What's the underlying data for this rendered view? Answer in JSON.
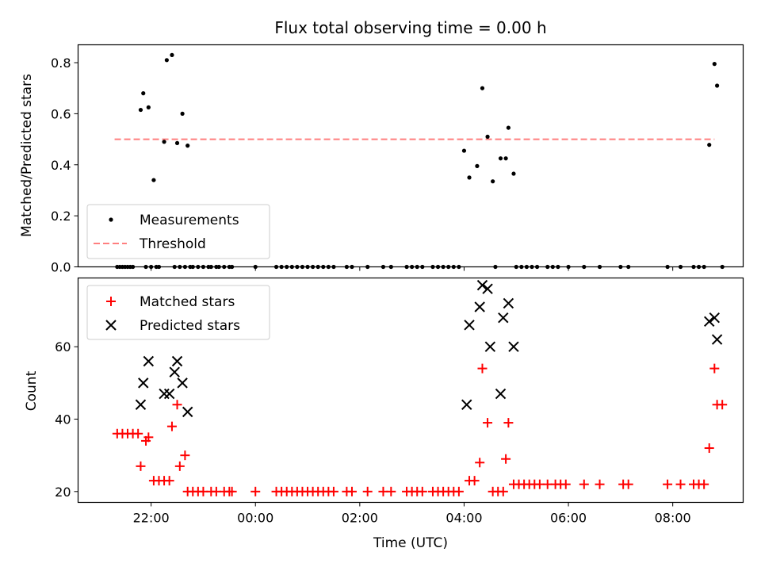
{
  "chart_data": [
    {
      "type": "scatter",
      "title": "Flux total observing time = 0.00 h",
      "xlabel": "",
      "ylabel": "Matched/Predicted stars",
      "ylim": [
        0,
        0.87
      ],
      "yticks": [
        0.0,
        0.2,
        0.4,
        0.6,
        0.8
      ],
      "ytick_labels": [
        "0.0",
        "0.2",
        "0.4",
        "0.6",
        "0.8"
      ],
      "x_unit": "hours since 00:00 UTC",
      "xlim": [
        -3.4,
        9.35
      ],
      "legend": {
        "placement": "lower-left",
        "entries": [
          "Measurements",
          "Threshold"
        ]
      },
      "threshold": {
        "name": "Threshold",
        "value": 0.5,
        "x_range": [
          -2.7,
          8.8
        ],
        "color": "#ff7f7f"
      },
      "series": [
        {
          "name": "Measurements",
          "color": "#000000",
          "points": [
            [
              -2.65,
              0
            ],
            [
              -2.6,
              0
            ],
            [
              -2.55,
              0
            ],
            [
              -2.5,
              0
            ],
            [
              -2.45,
              0
            ],
            [
              -2.4,
              0
            ],
            [
              -2.35,
              0
            ],
            [
              -2.2,
              0.615
            ],
            [
              -2.15,
              0.68
            ],
            [
              -2.1,
              0
            ],
            [
              -2.05,
              0.625
            ],
            [
              -2.0,
              0
            ],
            [
              -1.95,
              0.34
            ],
            [
              -1.9,
              0
            ],
            [
              -1.85,
              0
            ],
            [
              -1.75,
              0.49
            ],
            [
              -1.7,
              0.81
            ],
            [
              -1.6,
              0.83
            ],
            [
              -1.55,
              0
            ],
            [
              -1.5,
              0.485
            ],
            [
              -1.45,
              0
            ],
            [
              -1.4,
              0.6
            ],
            [
              -1.35,
              0
            ],
            [
              -1.3,
              0.475
            ],
            [
              -1.25,
              0
            ],
            [
              -1.2,
              0
            ],
            [
              -1.1,
              0
            ],
            [
              -1.0,
              0
            ],
            [
              -0.9,
              0
            ],
            [
              -0.85,
              0
            ],
            [
              -0.75,
              0
            ],
            [
              -0.7,
              0
            ],
            [
              -0.6,
              0
            ],
            [
              -0.5,
              0
            ],
            [
              -0.45,
              0
            ],
            [
              0.0,
              0
            ],
            [
              0.4,
              0
            ],
            [
              0.5,
              0
            ],
            [
              0.6,
              0
            ],
            [
              0.7,
              0
            ],
            [
              0.8,
              0
            ],
            [
              0.9,
              0
            ],
            [
              1.0,
              0
            ],
            [
              1.1,
              0
            ],
            [
              1.2,
              0
            ],
            [
              1.3,
              0
            ],
            [
              1.4,
              0
            ],
            [
              1.5,
              0
            ],
            [
              1.75,
              0
            ],
            [
              1.85,
              0
            ],
            [
              2.15,
              0
            ],
            [
              2.45,
              0
            ],
            [
              2.6,
              0
            ],
            [
              2.9,
              0
            ],
            [
              3.0,
              0
            ],
            [
              3.1,
              0
            ],
            [
              3.2,
              0
            ],
            [
              3.4,
              0
            ],
            [
              3.5,
              0
            ],
            [
              3.6,
              0
            ],
            [
              3.7,
              0
            ],
            [
              3.8,
              0
            ],
            [
              3.9,
              0
            ],
            [
              4.0,
              0.455
            ],
            [
              4.1,
              0.35
            ],
            [
              4.25,
              0.395
            ],
            [
              4.35,
              0.7
            ],
            [
              4.45,
              0.51
            ],
            [
              4.55,
              0.335
            ],
            [
              4.6,
              0
            ],
            [
              4.7,
              0.425
            ],
            [
              4.8,
              0.425
            ],
            [
              4.85,
              0.545
            ],
            [
              4.95,
              0.365
            ],
            [
              5.0,
              0
            ],
            [
              5.1,
              0
            ],
            [
              5.2,
              0
            ],
            [
              5.3,
              0
            ],
            [
              5.4,
              0
            ],
            [
              5.6,
              0
            ],
            [
              5.7,
              0
            ],
            [
              5.8,
              0
            ],
            [
              6.0,
              0
            ],
            [
              6.3,
              0
            ],
            [
              6.6,
              0
            ],
            [
              7.0,
              0
            ],
            [
              7.15,
              0
            ],
            [
              7.9,
              0
            ],
            [
              8.15,
              0
            ],
            [
              8.4,
              0
            ],
            [
              8.5,
              0
            ],
            [
              8.6,
              0
            ],
            [
              8.7,
              0.478
            ],
            [
              8.8,
              0.795
            ],
            [
              8.85,
              0.71
            ],
            [
              8.95,
              0
            ]
          ]
        }
      ]
    },
    {
      "type": "scatter",
      "title": "",
      "xlabel": "Time (UTC)",
      "ylabel": "Count",
      "ylim": [
        17,
        79
      ],
      "yticks": [
        20,
        40,
        60
      ],
      "ytick_labels": [
        "20",
        "40",
        "60"
      ],
      "x_unit": "hours since 00:00 UTC",
      "xlim": [
        -3.4,
        9.35
      ],
      "xticks": [
        -2,
        0,
        2,
        4,
        6,
        8
      ],
      "xtick_labels": [
        "22:00",
        "00:00",
        "02:00",
        "04:00",
        "06:00",
        "08:00"
      ],
      "legend": {
        "placement": "upper-left",
        "entries": [
          "Matched stars",
          "Predicted stars"
        ]
      },
      "series": [
        {
          "name": "Matched stars",
          "marker": "plus",
          "color": "#ff0000",
          "points": [
            [
              -2.65,
              36
            ],
            [
              -2.55,
              36
            ],
            [
              -2.45,
              36
            ],
            [
              -2.35,
              36
            ],
            [
              -2.25,
              36
            ],
            [
              -2.2,
              27
            ],
            [
              -2.1,
              34
            ],
            [
              -2.05,
              35
            ],
            [
              -1.95,
              23
            ],
            [
              -1.85,
              23
            ],
            [
              -1.75,
              23
            ],
            [
              -1.65,
              23
            ],
            [
              -1.6,
              38
            ],
            [
              -1.5,
              44
            ],
            [
              -1.45,
              27
            ],
            [
              -1.35,
              30
            ],
            [
              -1.3,
              20
            ],
            [
              -1.2,
              20
            ],
            [
              -1.1,
              20
            ],
            [
              -1.0,
              20
            ],
            [
              -0.85,
              20
            ],
            [
              -0.75,
              20
            ],
            [
              -0.6,
              20
            ],
            [
              -0.5,
              20
            ],
            [
              -0.45,
              20
            ],
            [
              0.0,
              20
            ],
            [
              0.4,
              20
            ],
            [
              0.5,
              20
            ],
            [
              0.6,
              20
            ],
            [
              0.7,
              20
            ],
            [
              0.8,
              20
            ],
            [
              0.9,
              20
            ],
            [
              1.0,
              20
            ],
            [
              1.1,
              20
            ],
            [
              1.2,
              20
            ],
            [
              1.3,
              20
            ],
            [
              1.4,
              20
            ],
            [
              1.5,
              20
            ],
            [
              1.75,
              20
            ],
            [
              1.85,
              20
            ],
            [
              2.15,
              20
            ],
            [
              2.45,
              20
            ],
            [
              2.6,
              20
            ],
            [
              2.9,
              20
            ],
            [
              3.0,
              20
            ],
            [
              3.1,
              20
            ],
            [
              3.2,
              20
            ],
            [
              3.4,
              20
            ],
            [
              3.5,
              20
            ],
            [
              3.6,
              20
            ],
            [
              3.7,
              20
            ],
            [
              3.8,
              20
            ],
            [
              3.9,
              20
            ],
            [
              4.1,
              23
            ],
            [
              4.2,
              23
            ],
            [
              4.3,
              28
            ],
            [
              4.35,
              54
            ],
            [
              4.45,
              39
            ],
            [
              4.55,
              20
            ],
            [
              4.65,
              20
            ],
            [
              4.75,
              20
            ],
            [
              4.8,
              29
            ],
            [
              4.85,
              39
            ],
            [
              4.95,
              22
            ],
            [
              5.05,
              22
            ],
            [
              5.15,
              22
            ],
            [
              5.25,
              22
            ],
            [
              5.35,
              22
            ],
            [
              5.45,
              22
            ],
            [
              5.6,
              22
            ],
            [
              5.75,
              22
            ],
            [
              5.85,
              22
            ],
            [
              5.95,
              22
            ],
            [
              6.3,
              22
            ],
            [
              6.6,
              22
            ],
            [
              7.05,
              22
            ],
            [
              7.15,
              22
            ],
            [
              7.9,
              22
            ],
            [
              8.15,
              22
            ],
            [
              8.4,
              22
            ],
            [
              8.5,
              22
            ],
            [
              8.6,
              22
            ],
            [
              8.7,
              32
            ],
            [
              8.8,
              54
            ],
            [
              8.85,
              44
            ],
            [
              8.95,
              44
            ]
          ]
        },
        {
          "name": "Predicted stars",
          "marker": "x",
          "color": "#000000",
          "points": [
            [
              -2.2,
              44
            ],
            [
              -2.15,
              50
            ],
            [
              -2.05,
              56
            ],
            [
              -1.75,
              47
            ],
            [
              -1.65,
              47
            ],
            [
              -1.55,
              53
            ],
            [
              -1.5,
              56
            ],
            [
              -1.4,
              50
            ],
            [
              -1.3,
              42
            ],
            [
              4.05,
              44
            ],
            [
              4.1,
              66
            ],
            [
              4.3,
              71
            ],
            [
              4.35,
              77
            ],
            [
              4.45,
              76
            ],
            [
              4.5,
              60
            ],
            [
              4.7,
              47
            ],
            [
              4.75,
              68
            ],
            [
              4.85,
              72
            ],
            [
              4.95,
              60
            ],
            [
              8.7,
              67
            ],
            [
              8.8,
              68
            ],
            [
              8.85,
              62
            ]
          ]
        }
      ]
    }
  ]
}
